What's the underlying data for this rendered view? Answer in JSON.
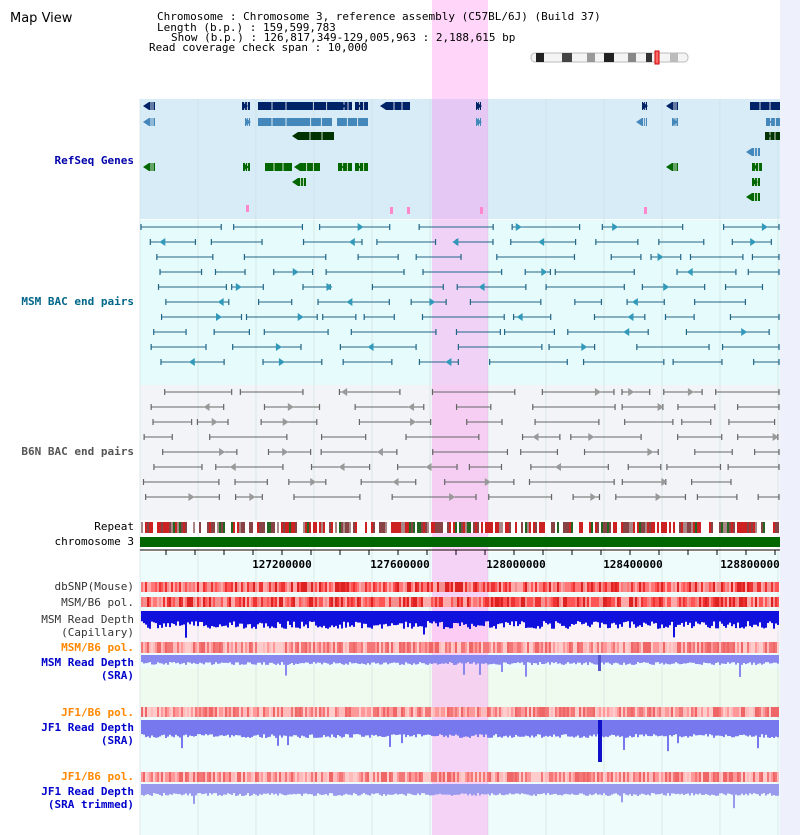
{
  "header": {
    "title": "Map View",
    "info_lines": [
      "Chromosome   : Chromosome 3, reference assembly (C57BL/6J) (Build 37)",
      "Length (b.p.) : 159,599,783",
      "Show (b.p.) : 126,817,349-129,005,963 : 2,188,615 bp",
      "Read coverage check span : 10,000"
    ]
  },
  "tracks": {
    "refseq": "RefSeq Genes",
    "msm_bac": "MSM BAC end pairs",
    "b6n_bac": "B6N BAC end pairs",
    "repeat": "Repeat",
    "chromosome": "chromosome 3",
    "dbsnp": "dbSNP(Mouse)",
    "msm_b6_pol": "MSM/B6 pol.",
    "msm_depth_cap_1": "MSM Read Depth",
    "msm_depth_cap_2": "(Capillary)",
    "msm_b6_pol2": "MSM/B6 pol.",
    "msm_depth_sra_1": "MSM Read Depth",
    "msm_depth_sra_2": "(SRA)",
    "jf1_b6_pol": "JF1/B6 pol.",
    "jf1_depth_sra_1": "JF1 Read Depth",
    "jf1_depth_sra_2": "(SRA)",
    "jf1_b6_pol2": "JF1/B6 pol.",
    "jf1_depth_trim_1": "JF1 Read Depth",
    "jf1_depth_trim_2": "(SRA trimmed)"
  },
  "axis": {
    "ticks": [
      "127200000",
      "127600000",
      "128000000",
      "128400000",
      "128800000"
    ]
  },
  "colors": {
    "refseq_label": "#0000aa",
    "msm_label": "#006688",
    "b6n_label": "#555555",
    "pol_label": "#ff8800",
    "depth_label": "#0000cc",
    "highlight": "#ff88ee",
    "gene_dark": "#002266",
    "gene_mid": "#4488bb",
    "gene_green": "#006600",
    "bac_msm": "#226688",
    "bac_b6n": "#666666",
    "chrom_bar": "#006600"
  }
}
